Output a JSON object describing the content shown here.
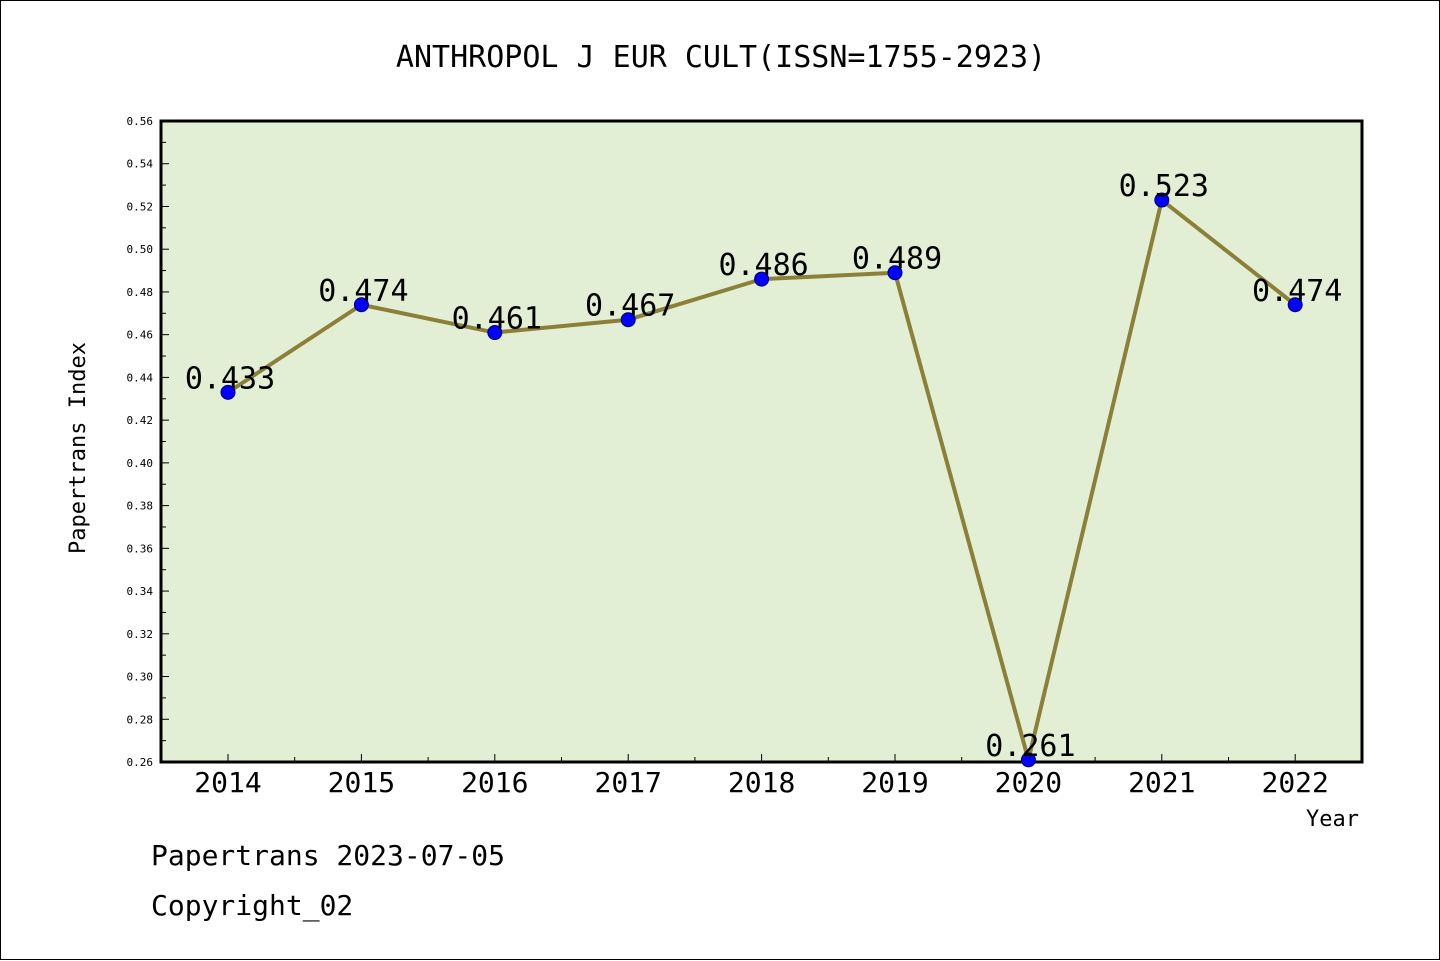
{
  "title": "ANTHROPOL J EUR CULT(ISSN=1755-2923)",
  "footer": {
    "line1": "Papertrans 2023-07-05",
    "line2": "Copyright_02"
  },
  "colors": {
    "plot_background": "#e2efd5",
    "line": "#8c7f38",
    "marker": "#0000ff"
  },
  "chart_data": {
    "type": "line",
    "title": "ANTHROPOL J EUR CULT(ISSN=1755-2923)",
    "xlabel": "Year",
    "ylabel": "Papertrans Index",
    "ylim": [
      0.26,
      0.56
    ],
    "y_ticks": [
      "0.26",
      "0.28",
      "0.30",
      "0.32",
      "0.34",
      "0.36",
      "0.38",
      "0.40",
      "0.42",
      "0.44",
      "0.46",
      "0.48",
      "0.50",
      "0.52",
      "0.54",
      "0.56"
    ],
    "categories": [
      "2014",
      "2015",
      "2016",
      "2017",
      "2018",
      "2019",
      "2020",
      "2021",
      "2022"
    ],
    "values": [
      0.433,
      0.474,
      0.461,
      0.467,
      0.486,
      0.489,
      0.261,
      0.523,
      0.474
    ],
    "data_labels": [
      "0.433",
      "0.474",
      "0.461",
      "0.467",
      "0.486",
      "0.489",
      "0.261",
      "0.523",
      "0.474"
    ],
    "grid": false,
    "legend": "none"
  }
}
